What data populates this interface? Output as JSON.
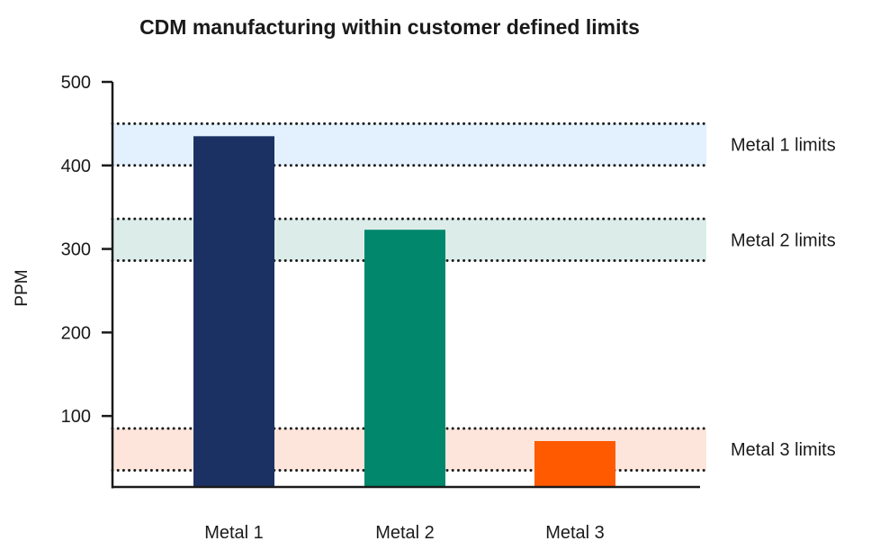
{
  "chart_data": {
    "type": "bar",
    "title": "CDM manufacturing within customer defined limits",
    "xlabel": "",
    "ylabel": "PPM",
    "ylim": [
      15,
      500
    ],
    "yticks": [
      100,
      200,
      300,
      400,
      500
    ],
    "grid": false,
    "categories": [
      "Metal 1",
      "Metal 2",
      "Metal 3"
    ],
    "values": [
      435,
      323,
      70
    ],
    "colors": [
      "#1c3163",
      "#00876c",
      "#ff5a00"
    ],
    "bands": [
      {
        "label": "Metal 1 limits",
        "low": 400,
        "high": 450,
        "color": "#e3f0fd"
      },
      {
        "label": "Metal 2 limits",
        "low": 286,
        "high": 336,
        "color": "#dcede9"
      },
      {
        "label": "Metal 3 limits",
        "low": 35,
        "high": 85,
        "color": "#fde5dc"
      }
    ]
  }
}
